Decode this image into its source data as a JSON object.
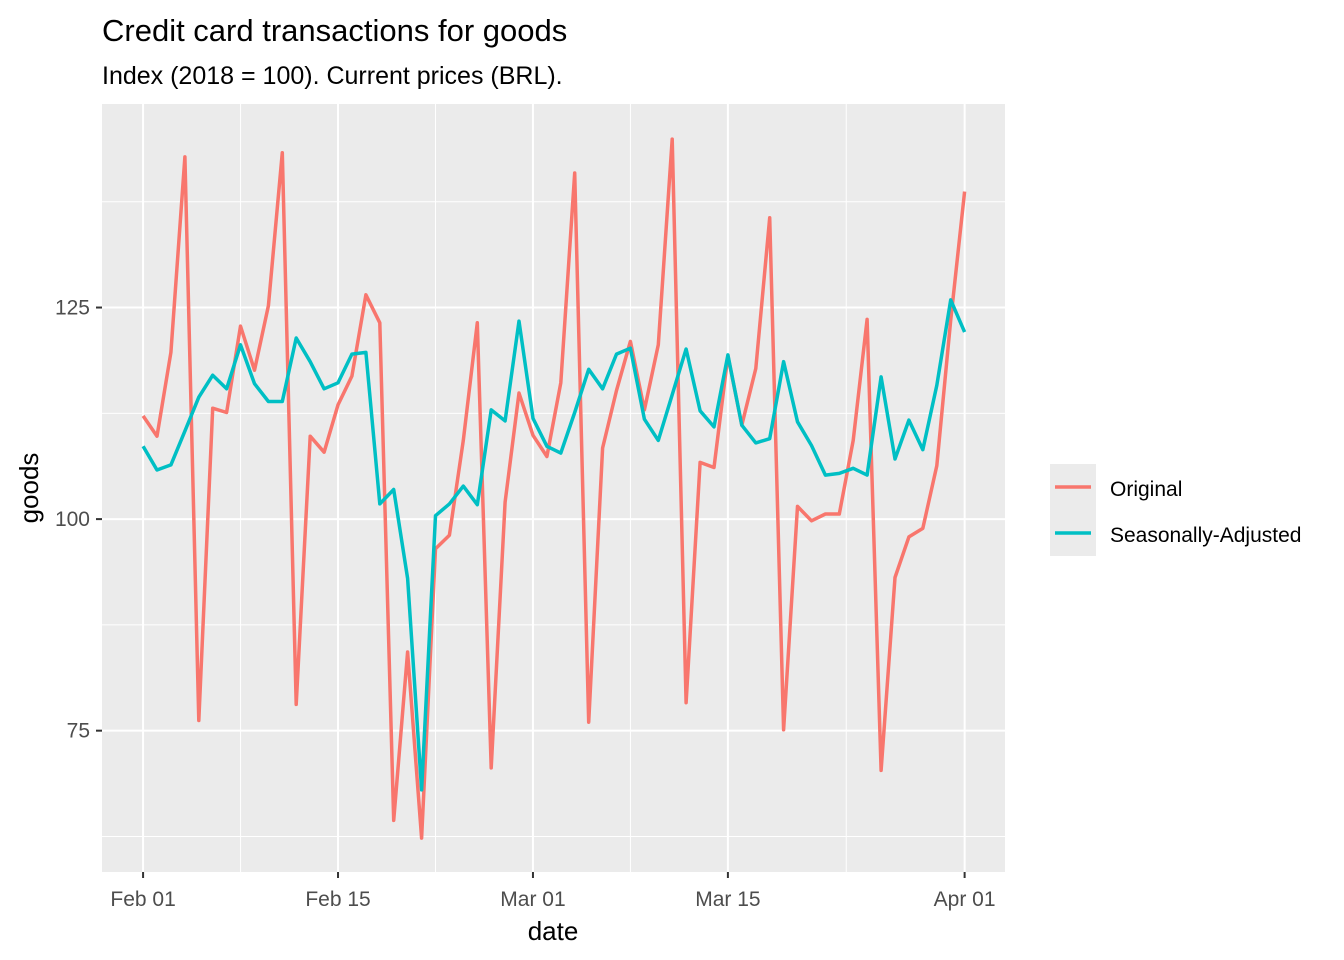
{
  "chart_data": {
    "type": "line",
    "title": "Credit card transactions for goods",
    "subtitle": "Index (2018 = 100). Current prices (BRL).",
    "xlabel": "date",
    "ylabel": "goods",
    "x_start": "Feb 01",
    "x_step": "1 day",
    "x_ticks": [
      {
        "day": 0,
        "label": "Feb 01"
      },
      {
        "day": 14,
        "label": "Feb 15"
      },
      {
        "day": 28,
        "label": "Mar 01"
      },
      {
        "day": 42,
        "label": "Mar 15"
      },
      {
        "day": 59,
        "label": "Apr 01"
      }
    ],
    "y_ticks": [
      75,
      100,
      125
    ],
    "xlim": [
      -2.95,
      61.9
    ],
    "ylim": [
      58.3,
      149.05
    ],
    "grid": true,
    "legend_position": "right",
    "series": [
      {
        "name": "Original",
        "color": "#F8766D",
        "values": [
          112.2,
          109.8,
          119.7,
          142.8,
          76.2,
          113.1,
          112.6,
          122.8,
          117.6,
          125.2,
          143.3,
          78.1,
          109.8,
          107.9,
          113.5,
          116.9,
          126.5,
          123.2,
          64.4,
          84.3,
          62.3,
          96.5,
          98.1,
          109.3,
          123.2,
          70.6,
          102.0,
          114.9,
          109.9,
          107.4,
          116.1,
          140.9,
          76.0,
          108.4,
          115.2,
          121.0,
          112.9,
          120.6,
          144.9,
          78.3,
          106.7,
          106.1,
          119.3,
          111.1,
          117.8,
          135.6,
          75.1,
          101.5,
          99.8,
          100.6,
          100.6,
          109.3,
          123.6,
          70.3,
          93.1,
          97.9,
          98.9,
          106.3,
          123.5,
          138.7
        ]
      },
      {
        "name": "Seasonally-Adjusted",
        "color": "#00BFC4",
        "values": [
          108.6,
          105.8,
          106.4,
          110.4,
          114.4,
          117.0,
          115.4,
          120.6,
          116.0,
          113.9,
          113.9,
          121.4,
          118.6,
          115.4,
          116.1,
          119.5,
          119.7,
          101.8,
          103.5,
          93.0,
          68.0,
          100.4,
          101.8,
          103.9,
          101.7,
          112.9,
          111.6,
          123.4,
          111.9,
          108.6,
          107.8,
          112.6,
          117.7,
          115.4,
          119.5,
          120.2,
          111.8,
          109.3,
          114.7,
          120.1,
          112.8,
          110.9,
          119.4,
          111.1,
          109.0,
          109.5,
          118.6,
          111.5,
          108.7,
          105.2,
          105.4,
          106.0,
          105.2,
          116.8,
          107.1,
          111.7,
          108.2,
          115.8,
          125.9,
          122.1
        ]
      }
    ]
  }
}
